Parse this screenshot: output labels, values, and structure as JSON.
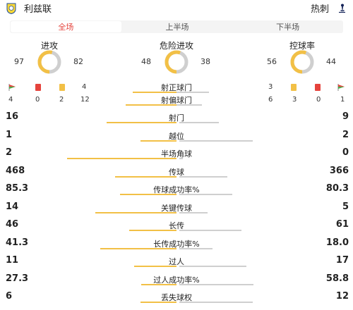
{
  "header": {
    "home_team": "利兹联",
    "away_team": "热刺"
  },
  "tabs": [
    {
      "label": "全场",
      "active": true
    },
    {
      "label": "上半场",
      "active": false
    },
    {
      "label": "下半场",
      "active": false
    }
  ],
  "rings": [
    {
      "title": "进攻",
      "home": 97,
      "away": 82
    },
    {
      "title": "危险进攻",
      "home": 48,
      "away": 38
    },
    {
      "title": "控球率",
      "home": 56,
      "away": 44
    }
  ],
  "discipline": {
    "home": {
      "corners": 4,
      "red_cards": 0,
      "yellow_cards": 2,
      "right_count": 12
    },
    "away": {
      "right_count": 6,
      "yellow_cards": 3,
      "red_cards": 0,
      "corners": 1
    }
  },
  "shots": [
    {
      "label": "射正球门",
      "home": 4,
      "away": 3
    },
    {
      "label": "射偏球门",
      "home": 12,
      "away": 6
    }
  ],
  "stats": [
    {
      "label": "射门",
      "home": "16",
      "away": "9",
      "home_frac": 0.64,
      "away_frac": 0.36
    },
    {
      "label": "越位",
      "home": "1",
      "away": "2",
      "home_frac": 0.33,
      "away_frac": 0.67
    },
    {
      "label": "半场角球",
      "home": "2",
      "away": "0",
      "home_frac": 1.0,
      "away_frac": 0.03
    },
    {
      "label": "传球",
      "home": "468",
      "away": "366",
      "home_frac": 0.56,
      "away_frac": 0.44
    },
    {
      "label": "传球成功率%",
      "home": "85.3",
      "away": "80.3",
      "home_frac": 0.515,
      "away_frac": 0.485
    },
    {
      "label": "关键传球",
      "home": "14",
      "away": "5",
      "home_frac": 0.74,
      "away_frac": 0.26
    },
    {
      "label": "长传",
      "home": "46",
      "away": "61",
      "home_frac": 0.43,
      "away_frac": 0.57
    },
    {
      "label": "长传成功率%",
      "home": "41.3",
      "away": "18.0",
      "home_frac": 0.7,
      "away_frac": 0.3
    },
    {
      "label": "过人",
      "home": "11",
      "away": "17",
      "home_frac": 0.39,
      "away_frac": 0.61
    },
    {
      "label": "过人成功率%",
      "home": "27.3",
      "away": "58.8",
      "home_frac": 0.32,
      "away_frac": 0.68
    },
    {
      "label": "丢失球权",
      "home": "6",
      "away": "12",
      "home_frac": 0.33,
      "away_frac": 0.67
    }
  ],
  "colors": {
    "accent": "#e5433c",
    "home_bar": "#f2c046",
    "away_bar": "#cfcfcf"
  }
}
